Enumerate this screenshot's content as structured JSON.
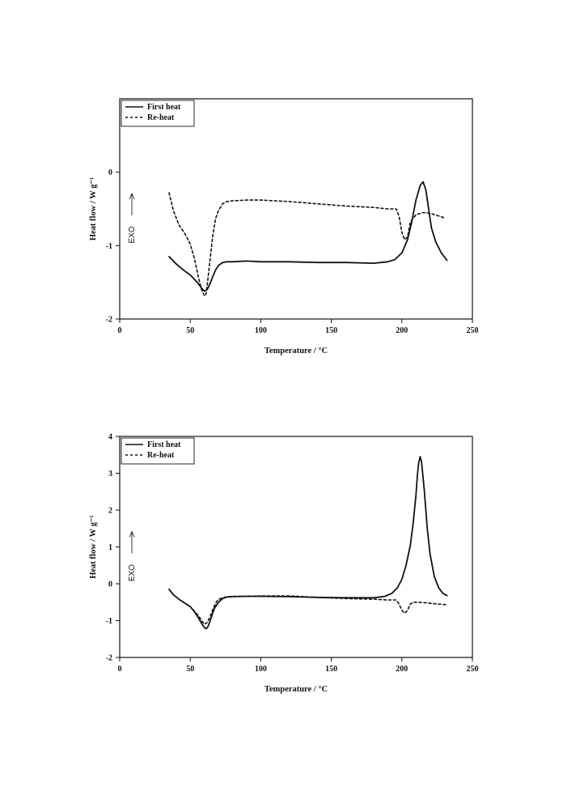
{
  "chart_data": [
    {
      "type": "line",
      "xlabel": "Temperature / °C",
      "ylabel": "Heat flow / W g⁻¹",
      "annotation": "EXO",
      "xlim": [
        0,
        250
      ],
      "ylim": [
        -2,
        1
      ],
      "xticks": [
        0,
        50,
        100,
        150,
        200,
        250
      ],
      "yticks": [
        -2,
        -1,
        0
      ],
      "grid": false,
      "legend": "top-left",
      "series": [
        {
          "name": "First heat",
          "style": "solid",
          "x": [
            35,
            40,
            45,
            50,
            55,
            58,
            60,
            62,
            64,
            66,
            68,
            70,
            73,
            76,
            80,
            90,
            100,
            120,
            140,
            160,
            180,
            190,
            195,
            200,
            204,
            207,
            210,
            213,
            215,
            217,
            219,
            221,
            224,
            228,
            232
          ],
          "y": [
            -1.15,
            -1.25,
            -1.33,
            -1.4,
            -1.5,
            -1.58,
            -1.62,
            -1.6,
            -1.52,
            -1.42,
            -1.33,
            -1.27,
            -1.23,
            -1.22,
            -1.22,
            -1.21,
            -1.22,
            -1.22,
            -1.23,
            -1.23,
            -1.24,
            -1.22,
            -1.19,
            -1.1,
            -0.92,
            -0.68,
            -0.38,
            -0.18,
            -0.13,
            -0.24,
            -0.5,
            -0.76,
            -0.95,
            -1.1,
            -1.2
          ]
        },
        {
          "name": "Re-heat",
          "style": "dashed",
          "x": [
            35,
            38,
            42,
            46,
            50,
            53,
            56,
            58,
            60,
            61,
            62,
            64,
            66,
            68,
            70,
            73,
            76,
            80,
            90,
            100,
            120,
            140,
            160,
            180,
            190,
            196,
            198,
            200,
            202,
            204,
            206,
            210,
            215,
            220,
            230
          ],
          "y": [
            -0.28,
            -0.52,
            -0.72,
            -0.83,
            -0.98,
            -1.18,
            -1.45,
            -1.6,
            -1.68,
            -1.68,
            -1.55,
            -1.2,
            -0.86,
            -0.63,
            -0.52,
            -0.43,
            -0.4,
            -0.39,
            -0.38,
            -0.38,
            -0.4,
            -0.43,
            -0.46,
            -0.48,
            -0.5,
            -0.5,
            -0.6,
            -0.82,
            -0.92,
            -0.88,
            -0.68,
            -0.58,
            -0.55,
            -0.56,
            -0.62
          ]
        }
      ]
    },
    {
      "type": "line",
      "xlabel": "Temperature / °C",
      "ylabel": "Heat flow / W g⁻¹",
      "annotation": "EXO",
      "xlim": [
        0,
        250
      ],
      "ylim": [
        -2,
        4
      ],
      "xticks": [
        0,
        50,
        100,
        150,
        200,
        250
      ],
      "yticks": [
        -2,
        -1,
        0,
        1,
        2,
        3,
        4
      ],
      "grid": false,
      "legend": "top-left",
      "series": [
        {
          "name": "First heat",
          "style": "solid",
          "x": [
            35,
            38,
            42,
            46,
            50,
            53,
            56,
            58,
            60,
            61,
            62,
            63,
            65,
            67,
            70,
            73,
            76,
            80,
            90,
            100,
            120,
            140,
            160,
            180,
            188,
            193,
            197,
            200,
            203,
            206,
            208,
            210,
            211,
            212,
            213,
            214,
            216,
            218,
            220,
            223,
            226,
            229,
            232
          ],
          "y": [
            -0.15,
            -0.3,
            -0.42,
            -0.52,
            -0.62,
            -0.76,
            -0.94,
            -1.08,
            -1.18,
            -1.22,
            -1.2,
            -1.12,
            -0.9,
            -0.68,
            -0.5,
            -0.4,
            -0.36,
            -0.35,
            -0.34,
            -0.34,
            -0.35,
            -0.37,
            -0.38,
            -0.38,
            -0.34,
            -0.26,
            -0.1,
            0.12,
            0.5,
            1.05,
            1.65,
            2.4,
            2.95,
            3.3,
            3.45,
            3.3,
            2.5,
            1.5,
            0.8,
            0.2,
            -0.1,
            -0.26,
            -0.32
          ]
        },
        {
          "name": "Re-heat",
          "style": "dashed",
          "x": [
            52,
            56,
            58,
            60,
            62,
            64,
            66,
            68,
            70,
            75,
            80,
            90,
            100,
            120,
            140,
            160,
            180,
            190,
            196,
            198,
            200,
            202,
            204,
            206,
            208,
            212,
            218,
            225,
            232
          ],
          "y": [
            -0.7,
            -0.88,
            -1.0,
            -1.1,
            -1.05,
            -0.9,
            -0.7,
            -0.52,
            -0.42,
            -0.36,
            -0.34,
            -0.34,
            -0.33,
            -0.33,
            -0.37,
            -0.4,
            -0.42,
            -0.44,
            -0.44,
            -0.55,
            -0.72,
            -0.8,
            -0.72,
            -0.55,
            -0.5,
            -0.5,
            -0.52,
            -0.55,
            -0.57
          ]
        }
      ]
    }
  ]
}
